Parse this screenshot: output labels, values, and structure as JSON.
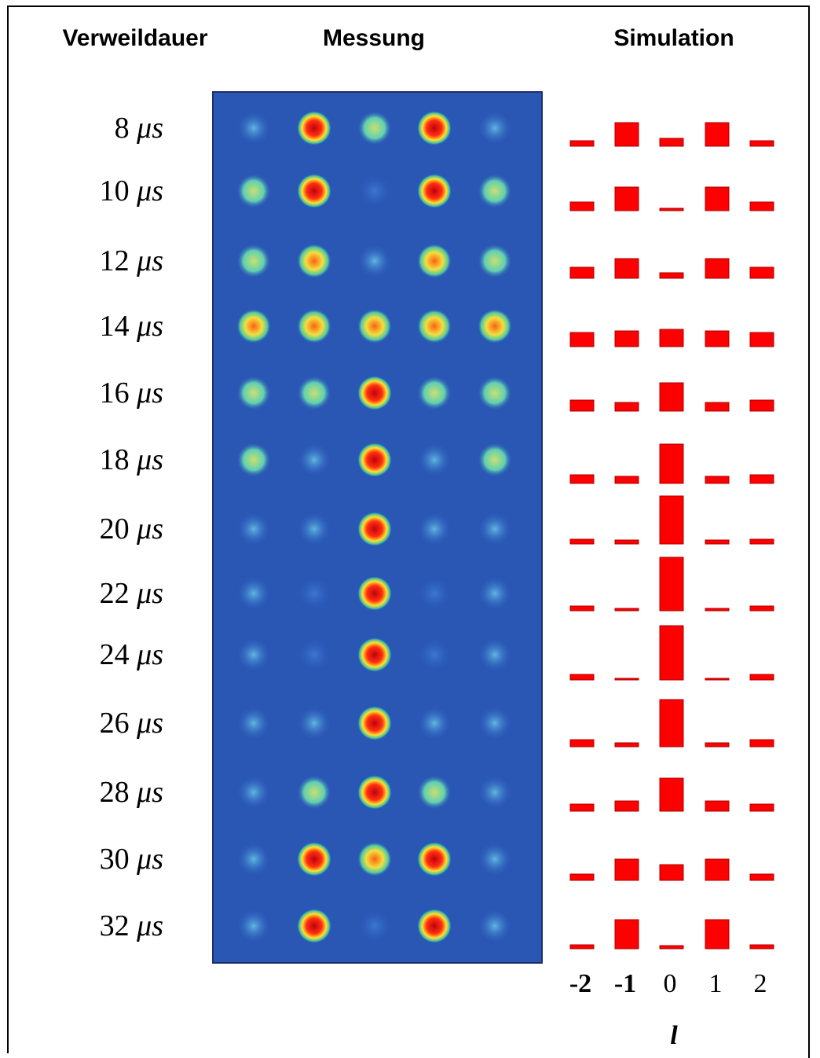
{
  "header": {
    "col1": "Verweildauer",
    "col2": "Messung",
    "col3": "Simulation"
  },
  "orders": [
    "-2",
    "-1",
    "0",
    "1",
    "2"
  ],
  "axis_symbol": "l",
  "rows": [
    {
      "time": 8,
      "unit": "μs",
      "bars": [
        7,
        30,
        10,
        30,
        7
      ]
    },
    {
      "time": 10,
      "unit": "μs",
      "bars": [
        11,
        30,
        3,
        30,
        11
      ]
    },
    {
      "time": 12,
      "unit": "μs",
      "bars": [
        14,
        25,
        7,
        25,
        14
      ]
    },
    {
      "time": 14,
      "unit": "μs",
      "bars": [
        18,
        20,
        22,
        20,
        18
      ]
    },
    {
      "time": 16,
      "unit": "μs",
      "bars": [
        14,
        11,
        36,
        11,
        14
      ]
    },
    {
      "time": 18,
      "unit": "μs",
      "bars": [
        11,
        9,
        50,
        9,
        11
      ]
    },
    {
      "time": 20,
      "unit": "μs",
      "bars": [
        6,
        5,
        61,
        5,
        6
      ]
    },
    {
      "time": 22,
      "unit": "μs",
      "bars": [
        6,
        3,
        68,
        3,
        6
      ]
    },
    {
      "time": 24,
      "unit": "μs",
      "bars": [
        7,
        2,
        69,
        2,
        7
      ]
    },
    {
      "time": 26,
      "unit": "μs",
      "bars": [
        9,
        5,
        60,
        5,
        9
      ]
    },
    {
      "time": 28,
      "unit": "μs",
      "bars": [
        9,
        13,
        42,
        13,
        9
      ]
    },
    {
      "time": 30,
      "unit": "μs",
      "bars": [
        8,
        27,
        20,
        27,
        8
      ]
    },
    {
      "time": 32,
      "unit": "μs",
      "bars": [
        5,
        37,
        4,
        37,
        5
      ]
    }
  ]
}
